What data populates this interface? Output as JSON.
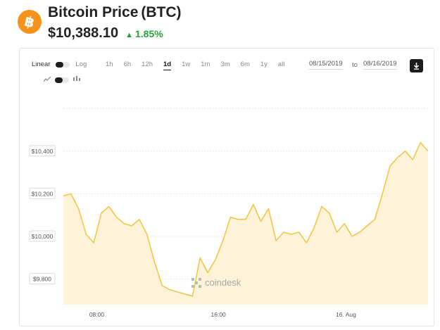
{
  "header": {
    "logo_symbol": "฿",
    "title": "Bitcoin Price",
    "symbol": "(BTC)",
    "price": "$10,388.10",
    "change": "1.85%",
    "change_color": "#25a13a",
    "accent_color": "#f7931a"
  },
  "toolbar": {
    "scale_linear": "Linear",
    "scale_log": "Log",
    "chart_type_icons": [
      "line-chart-icon",
      "candlestick-icon"
    ],
    "ranges": [
      "1h",
      "6h",
      "12h",
      "1d",
      "1w",
      "1m",
      "3m",
      "6m",
      "1y",
      "all"
    ],
    "active_range": "1d",
    "date_from": "08/15/2019",
    "date_to_label": "to",
    "date_to": "08/16/2019",
    "download_icon": "download-icon"
  },
  "watermark": "coindesk",
  "chart_data": {
    "type": "area",
    "line_color": "#f6c33e",
    "fill_color": "#fdf3d9",
    "grid": true,
    "y_ticks": [
      "$9,800",
      "$10,000",
      "$10,200",
      "$10,400"
    ],
    "ylim": [
      9680,
      10640
    ],
    "x_ticks": [
      "08:00",
      "16:00",
      "16. Aug"
    ],
    "series": [
      {
        "x": [
          0,
          0.5,
          1,
          1.5,
          2,
          2.5,
          3,
          3.5,
          4,
          4.5,
          5,
          5.5,
          6,
          6.5,
          7,
          7.5,
          8,
          8.5,
          9,
          9.5,
          10,
          10.5,
          11,
          11.5,
          12,
          12.5,
          13,
          13.5,
          14,
          14.5,
          15,
          15.5,
          16,
          16.5,
          17,
          17.5,
          18,
          18.5,
          19,
          19.5,
          20,
          20.5,
          21,
          21.5,
          22,
          22.5,
          23,
          23.5,
          24
        ],
        "values": [
          10190,
          10200,
          10130,
          10010,
          9970,
          10110,
          10140,
          10090,
          10060,
          10050,
          10080,
          10010,
          9880,
          9770,
          9750,
          9740,
          9730,
          9720,
          9900,
          9830,
          9890,
          9980,
          10090,
          10080,
          10080,
          10150,
          10070,
          10130,
          9980,
          10020,
          10010,
          10020,
          9970,
          10040,
          10140,
          10110,
          10020,
          10060,
          10000,
          10020,
          10050,
          10080,
          10200,
          10330,
          10370,
          10400,
          10360,
          10440,
          10400
        ]
      }
    ]
  }
}
